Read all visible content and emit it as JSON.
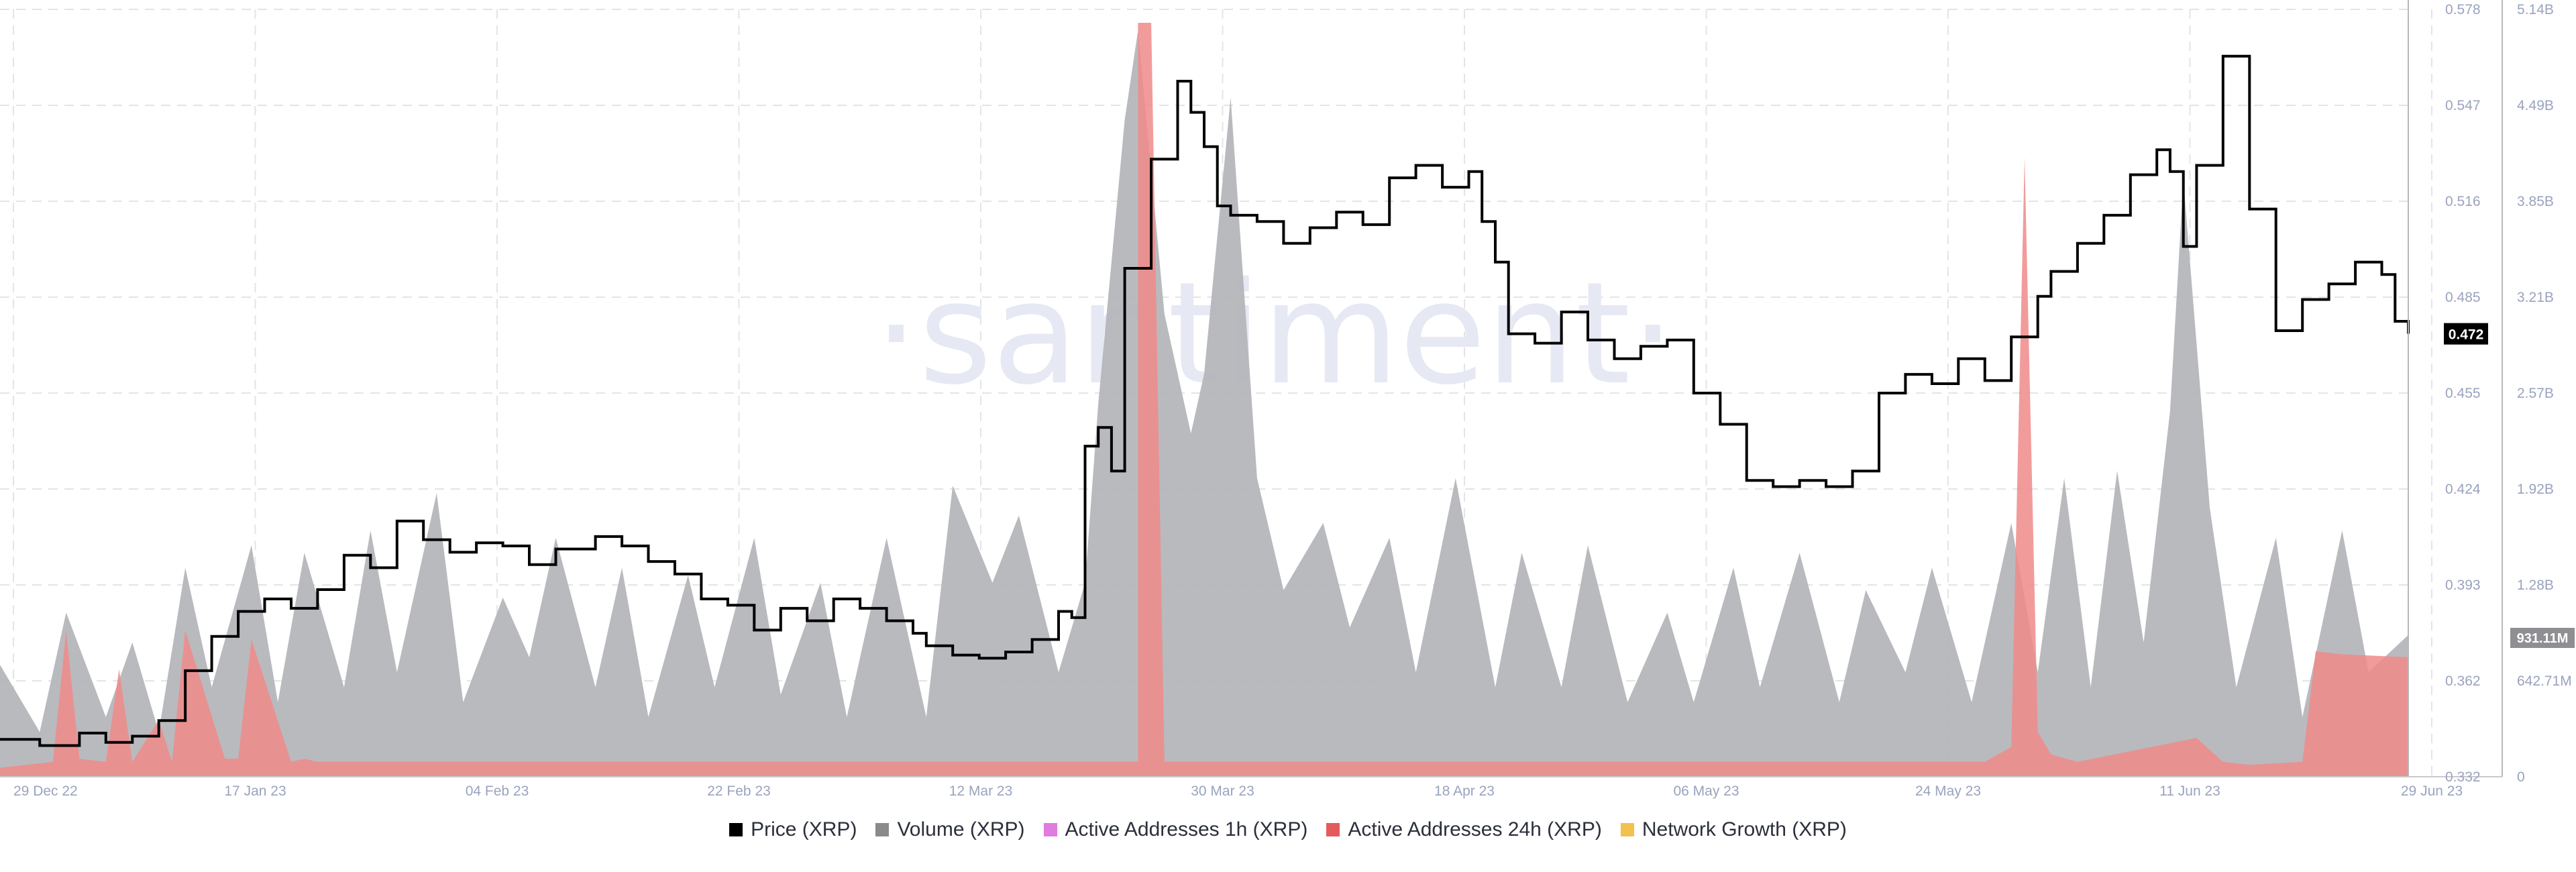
{
  "watermark": "·santiment·",
  "legend": [
    {
      "label": "Price (XRP)",
      "color": "#000000"
    },
    {
      "label": "Volume (XRP)",
      "color": "#8a8a8a"
    },
    {
      "label": "Active Addresses 1h (XRP)",
      "color": "#e07be0"
    },
    {
      "label": "Active Addresses 24h (XRP)",
      "color": "#e45b5b"
    },
    {
      "label": "Network Growth (XRP)",
      "color": "#f2c14e"
    }
  ],
  "chart_data": {
    "type": "line",
    "x_tick_labels": [
      "29 Dec 22",
      "17 Jan 23",
      "04 Feb 23",
      "22 Feb 23",
      "12 Mar 23",
      "30 Mar 23",
      "18 Apr 23",
      "06 May 23",
      "24 May 23",
      "11 Jun 23",
      "29 Jun 23"
    ],
    "x_range": [
      "2022-12-29",
      "2023-06-29"
    ],
    "price_axis": {
      "ticks": [
        "0.578",
        "0.547",
        "0.516",
        "0.485",
        "0.455",
        "0.424",
        "0.393",
        "0.362",
        "0.332"
      ],
      "range": [
        0.332,
        0.578
      ],
      "current_label": "0.472"
    },
    "volume_axis": {
      "ticks": [
        "5.14B",
        "4.49B",
        "3.85B",
        "3.21B",
        "2.57B",
        "1.92B",
        "1.28B",
        "642.71M",
        "0"
      ],
      "range": [
        0,
        5.14
      ],
      "unit": "B",
      "current_label": "931.11M"
    },
    "grid": true,
    "legend_position": "bottom",
    "colors": {
      "price": "#000000",
      "volume": "#b5b6ba",
      "aa24h": "#f08a8a",
      "watermark": "#e6e8f3"
    },
    "series": [
      {
        "name": "Price (XRP)",
        "axis": "price",
        "style": "step",
        "x": [
          "2022-12-29",
          "2023-01-01",
          "2023-01-04",
          "2023-01-06",
          "2023-01-08",
          "2023-01-10",
          "2023-01-12",
          "2023-01-14",
          "2023-01-16",
          "2023-01-18",
          "2023-01-20",
          "2023-01-22",
          "2023-01-24",
          "2023-01-26",
          "2023-01-28",
          "2023-01-30",
          "2023-02-01",
          "2023-02-03",
          "2023-02-05",
          "2023-02-07",
          "2023-02-09",
          "2023-02-12",
          "2023-02-14",
          "2023-02-16",
          "2023-02-18",
          "2023-02-20",
          "2023-02-22",
          "2023-02-24",
          "2023-02-26",
          "2023-02-28",
          "2023-03-02",
          "2023-03-04",
          "2023-03-06",
          "2023-03-08",
          "2023-03-09",
          "2023-03-11",
          "2023-03-13",
          "2023-03-15",
          "2023-03-17",
          "2023-03-19",
          "2023-03-20",
          "2023-03-21",
          "2023-03-22",
          "2023-03-23",
          "2023-03-24",
          "2023-03-26",
          "2023-03-28",
          "2023-03-29",
          "2023-03-30",
          "2023-03-31",
          "2023-04-01",
          "2023-04-03",
          "2023-04-05",
          "2023-04-07",
          "2023-04-09",
          "2023-04-11",
          "2023-04-13",
          "2023-04-15",
          "2023-04-17",
          "2023-04-19",
          "2023-04-20",
          "2023-04-21",
          "2023-04-22",
          "2023-04-24",
          "2023-04-26",
          "2023-04-28",
          "2023-04-30",
          "2023-05-02",
          "2023-05-04",
          "2023-05-06",
          "2023-05-08",
          "2023-05-10",
          "2023-05-12",
          "2023-05-14",
          "2023-05-16",
          "2023-05-18",
          "2023-05-20",
          "2023-05-22",
          "2023-05-24",
          "2023-05-26",
          "2023-05-28",
          "2023-05-30",
          "2023-06-01",
          "2023-06-02",
          "2023-06-04",
          "2023-06-06",
          "2023-06-08",
          "2023-06-10",
          "2023-06-11",
          "2023-06-12",
          "2023-06-13",
          "2023-06-15",
          "2023-06-17",
          "2023-06-19",
          "2023-06-21",
          "2023-06-23",
          "2023-06-25",
          "2023-06-27",
          "2023-06-28",
          "2023-06-29"
        ],
        "values": [
          0.344,
          0.342,
          0.346,
          0.343,
          0.345,
          0.35,
          0.366,
          0.377,
          0.385,
          0.389,
          0.386,
          0.392,
          0.403,
          0.399,
          0.414,
          0.408,
          0.404,
          0.407,
          0.406,
          0.4,
          0.405,
          0.409,
          0.406,
          0.401,
          0.397,
          0.389,
          0.387,
          0.379,
          0.386,
          0.382,
          0.389,
          0.386,
          0.382,
          0.378,
          0.374,
          0.371,
          0.37,
          0.372,
          0.376,
          0.385,
          0.383,
          0.438,
          0.444,
          0.43,
          0.495,
          0.53,
          0.555,
          0.545,
          0.534,
          0.515,
          0.512,
          0.51,
          0.503,
          0.508,
          0.513,
          0.509,
          0.524,
          0.528,
          0.521,
          0.526,
          0.51,
          0.497,
          0.474,
          0.471,
          0.481,
          0.472,
          0.466,
          0.47,
          0.472,
          0.455,
          0.445,
          0.427,
          0.425,
          0.427,
          0.425,
          0.43,
          0.455,
          0.461,
          0.458,
          0.466,
          0.459,
          0.473,
          0.486,
          0.494,
          0.503,
          0.512,
          0.525,
          0.533,
          0.526,
          0.502,
          0.528,
          0.563,
          0.514,
          0.475,
          0.485,
          0.49,
          0.497,
          0.493,
          0.478,
          0.474
        ]
      },
      {
        "name": "Volume (XRP)",
        "axis": "volume",
        "style": "area",
        "x": [
          "2022-12-29",
          "2023-01-01",
          "2023-01-03",
          "2023-01-06",
          "2023-01-08",
          "2023-01-10",
          "2023-01-12",
          "2023-01-14",
          "2023-01-17",
          "2023-01-19",
          "2023-01-21",
          "2023-01-24",
          "2023-01-26",
          "2023-01-28",
          "2023-01-31",
          "2023-02-02",
          "2023-02-05",
          "2023-02-07",
          "2023-02-09",
          "2023-02-12",
          "2023-02-14",
          "2023-02-16",
          "2023-02-19",
          "2023-02-21",
          "2023-02-24",
          "2023-02-26",
          "2023-03-01",
          "2023-03-03",
          "2023-03-06",
          "2023-03-09",
          "2023-03-11",
          "2023-03-14",
          "2023-03-16",
          "2023-03-19",
          "2023-03-21",
          "2023-03-22",
          "2023-03-24",
          "2023-03-25",
          "2023-03-27",
          "2023-03-29",
          "2023-03-30",
          "2023-04-01",
          "2023-04-03",
          "2023-04-05",
          "2023-04-08",
          "2023-04-10",
          "2023-04-13",
          "2023-04-15",
          "2023-04-18",
          "2023-04-21",
          "2023-04-23",
          "2023-04-26",
          "2023-04-28",
          "2023-05-01",
          "2023-05-04",
          "2023-05-06",
          "2023-05-09",
          "2023-05-11",
          "2023-05-14",
          "2023-05-17",
          "2023-05-19",
          "2023-05-22",
          "2023-05-24",
          "2023-05-27",
          "2023-05-30",
          "2023-06-01",
          "2023-06-03",
          "2023-06-05",
          "2023-06-07",
          "2023-06-09",
          "2023-06-11",
          "2023-06-12",
          "2023-06-14",
          "2023-06-16",
          "2023-06-19",
          "2023-06-21",
          "2023-06-24",
          "2023-06-26",
          "2023-06-29"
        ],
        "values": [
          0.75,
          0.3,
          1.1,
          0.4,
          0.9,
          0.3,
          1.4,
          0.6,
          1.55,
          0.5,
          1.5,
          0.6,
          1.65,
          0.7,
          1.9,
          0.5,
          1.2,
          0.8,
          1.6,
          0.6,
          1.4,
          0.4,
          1.35,
          0.6,
          1.6,
          0.55,
          1.3,
          0.4,
          1.6,
          0.4,
          1.95,
          1.3,
          1.75,
          0.7,
          1.3,
          2.5,
          4.4,
          5.0,
          3.1,
          2.3,
          2.7,
          4.55,
          2.0,
          1.25,
          1.7,
          1.0,
          1.6,
          0.7,
          2.0,
          0.6,
          1.5,
          0.6,
          1.55,
          0.5,
          1.1,
          0.5,
          1.4,
          0.6,
          1.5,
          0.5,
          1.25,
          0.7,
          1.4,
          0.5,
          1.7,
          0.7,
          2.0,
          0.6,
          2.05,
          0.9,
          2.45,
          4.0,
          1.8,
          0.6,
          1.6,
          0.4,
          1.65,
          0.7,
          0.95
        ]
      },
      {
        "name": "Active Addresses 24h (XRP)",
        "axis": "volume",
        "style": "area",
        "x": [
          "2022-12-29",
          "2023-01-02",
          "2023-01-03",
          "2023-01-04",
          "2023-01-06",
          "2023-01-07",
          "2023-01-08",
          "2023-01-10",
          "2023-01-11",
          "2023-01-12",
          "2023-01-15",
          "2023-01-16",
          "2023-01-17",
          "2023-01-20",
          "2023-01-21",
          "2023-01-22",
          "2023-03-14",
          "2023-03-25",
          "2023-03-25",
          "2023-03-26",
          "2023-03-27",
          "2023-04-20",
          "2023-05-28",
          "2023-05-30",
          "2023-05-31",
          "2023-06-01",
          "2023-06-02",
          "2023-06-04",
          "2023-06-13",
          "2023-06-15",
          "2023-06-17",
          "2023-06-21",
          "2023-06-22",
          "2023-06-24",
          "2023-06-29"
        ],
        "values": [
          0.06,
          0.1,
          0.98,
          0.12,
          0.1,
          0.72,
          0.1,
          0.38,
          0.1,
          0.98,
          0.12,
          0.12,
          0.92,
          0.1,
          0.12,
          0.1,
          0.1,
          0.1,
          5.05,
          5.05,
          0.1,
          0.1,
          0.1,
          0.2,
          4.15,
          0.3,
          0.15,
          0.1,
          0.26,
          0.1,
          0.08,
          0.1,
          0.84,
          0.82,
          0.8
        ]
      }
    ]
  }
}
